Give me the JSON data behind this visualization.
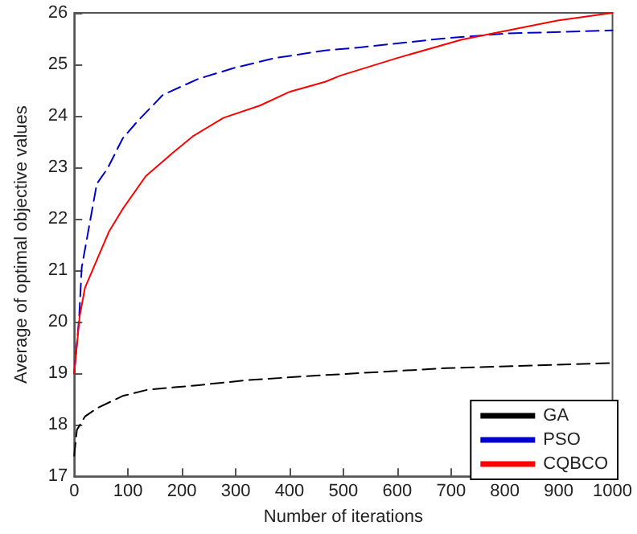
{
  "chart_data": {
    "type": "line",
    "xlabel": "Number of iterations",
    "ylabel": "Average of optimal objective values",
    "xlim": [
      0,
      1000
    ],
    "xticks": [
      0,
      100,
      200,
      300,
      400,
      500,
      600,
      700,
      800,
      900,
      {
        "value": 1000,
        "label": "1000"
      }
    ],
    "ylim": [
      17,
      26
    ],
    "yticks": [
      17,
      18,
      19,
      20,
      21,
      22,
      23,
      24,
      25,
      26
    ],
    "grid": false,
    "legend": "bottom right",
    "marker": "none",
    "series": [
      {
        "name": "GA",
        "color": "#000000",
        "line_style": "dashed",
        "x": [
          0,
          5,
          20,
          42,
          90,
          136,
          231,
          325,
          457,
          692,
          1000
        ],
        "values": [
          17.4,
          17.9,
          18.16,
          18.32,
          18.56,
          18.68,
          18.77,
          18.87,
          18.96,
          19.1,
          19.2
        ]
      },
      {
        "name": "PSO",
        "color": "#0000cc",
        "line_style": "dashed",
        "x": [
          0,
          9,
          14,
          42,
          62,
          90,
          118,
          165,
          231,
          297,
          372,
          466,
          531,
          692,
          805,
          1000
        ],
        "values": [
          19,
          20.05,
          21.06,
          22.68,
          22.98,
          23.56,
          23.9,
          24.41,
          24.72,
          24.93,
          25.12,
          25.27,
          25.33,
          25.51,
          25.6,
          25.66
        ]
      },
      {
        "name": "CQBCO",
        "color": "#ff0000",
        "line_style": "solid",
        "x": [
          0,
          10,
          20,
          42,
          65,
          90,
          133,
          184,
          220,
          277,
          345,
          401,
          466,
          494,
          599,
          720,
          898,
          1000
        ],
        "values": [
          19,
          20.1,
          20.66,
          21.2,
          21.76,
          22.19,
          22.83,
          23.29,
          23.6,
          23.96,
          24.2,
          24.47,
          24.66,
          24.78,
          25.12,
          25.48,
          25.85,
          26
        ]
      }
    ]
  }
}
